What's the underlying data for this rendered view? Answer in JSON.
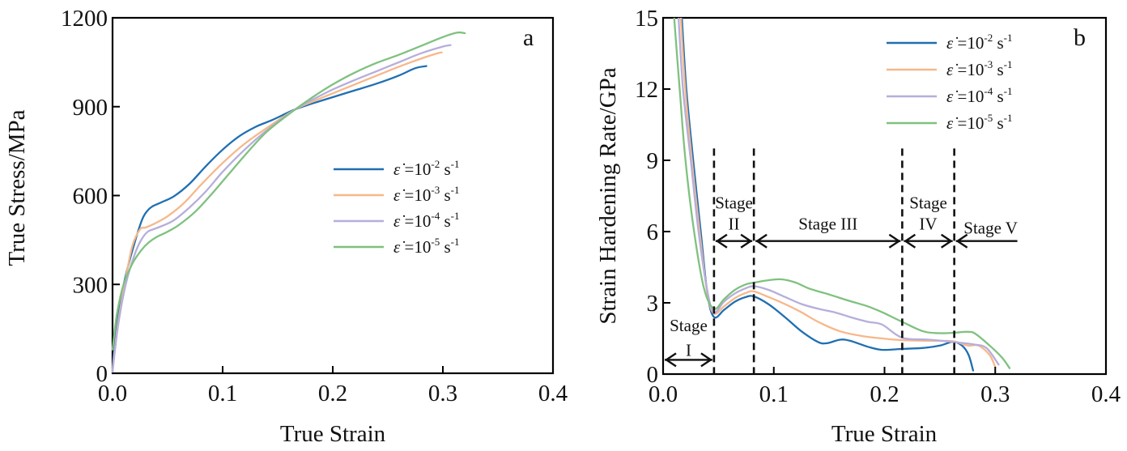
{
  "chart_data": [
    {
      "type": "line",
      "panel": "a",
      "title": "",
      "xlabel": "True Strain",
      "ylabel": "True Stress/MPa",
      "xlim": [
        0,
        0.4
      ],
      "ylim": [
        0,
        1200
      ],
      "xticks": [
        0.0,
        0.1,
        0.2,
        0.3,
        0.4
      ],
      "xtick_labels": [
        "0.0",
        "0.1",
        "0.2",
        "0.3",
        "0.4"
      ],
      "yticks": [
        0,
        300,
        600,
        900,
        1200
      ],
      "ytick_labels": [
        "0",
        "300",
        "600",
        "900",
        "1200"
      ],
      "grid": false,
      "legend_position": "center-right",
      "series": [
        {
          "name": "ε̇ =10-2 s-1",
          "rate_base": "ε̇ =10",
          "rate_exp": "-2",
          "unit": " s",
          "unit_exp": "-1",
          "color": "#1f6fb2",
          "x": [
            0.0,
            0.005,
            0.012,
            0.02,
            0.027,
            0.032,
            0.037,
            0.045,
            0.056,
            0.07,
            0.085,
            0.1,
            0.115,
            0.13,
            0.145,
            0.166,
            0.185,
            0.2,
            0.22,
            0.24,
            0.26,
            0.275,
            0.285
          ],
          "y": [
            20,
            200,
            330,
            440,
            520,
            550,
            565,
            578,
            598,
            640,
            700,
            755,
            800,
            832,
            855,
            891,
            915,
            932,
            955,
            978,
            1005,
            1030,
            1037
          ]
        },
        {
          "name": "ε̇ =10-3 s-1",
          "rate_base": "ε̇ =10",
          "rate_exp": "-3",
          "unit": " s",
          "unit_exp": "-1",
          "color": "#f6b88a",
          "x": [
            0.0,
            0.005,
            0.012,
            0.018,
            0.025,
            0.03,
            0.038,
            0.05,
            0.065,
            0.08,
            0.1,
            0.12,
            0.14,
            0.166,
            0.185,
            0.2,
            0.22,
            0.24,
            0.26,
            0.28,
            0.295,
            0.299
          ],
          "y": [
            10,
            170,
            320,
            430,
            486,
            492,
            505,
            530,
            575,
            635,
            710,
            775,
            828,
            891,
            922,
            945,
            975,
            1005,
            1035,
            1062,
            1080,
            1083
          ]
        },
        {
          "name": "ε̇ =10-4 s-1",
          "rate_base": "ε̇ =10",
          "rate_exp": "-4",
          "unit": " s",
          "unit_exp": "-1",
          "color": "#b6aedb",
          "x": [
            0.0,
            0.005,
            0.012,
            0.02,
            0.026,
            0.032,
            0.04,
            0.055,
            0.07,
            0.085,
            0.1,
            0.12,
            0.14,
            0.166,
            0.185,
            0.2,
            0.22,
            0.24,
            0.26,
            0.28,
            0.3,
            0.307
          ],
          "y": [
            5,
            160,
            300,
            400,
            450,
            478,
            490,
            515,
            560,
            615,
            680,
            755,
            820,
            891,
            930,
            958,
            990,
            1020,
            1050,
            1080,
            1103,
            1108
          ]
        },
        {
          "name": "ε̇ =10-5 s-1",
          "rate_base": "ε̇ =10",
          "rate_exp": "-5",
          "unit": " s",
          "unit_exp": "-1",
          "color": "#7fc17f",
          "x": [
            0.0,
            0.004,
            0.01,
            0.018,
            0.026,
            0.033,
            0.04,
            0.05,
            0.06,
            0.075,
            0.09,
            0.105,
            0.12,
            0.14,
            0.166,
            0.185,
            0.2,
            0.22,
            0.24,
            0.26,
            0.28,
            0.3,
            0.313,
            0.32
          ],
          "y": [
            80,
            200,
            300,
            370,
            415,
            442,
            460,
            478,
            500,
            545,
            605,
            670,
            735,
            815,
            891,
            940,
            975,
            1015,
            1048,
            1075,
            1105,
            1135,
            1150,
            1148
          ]
        }
      ]
    },
    {
      "type": "line",
      "panel": "b",
      "title": "",
      "xlabel": "True Strain",
      "ylabel": "Strain Hardening Rate/GPa",
      "xlim": [
        0,
        0.4
      ],
      "ylim": [
        0,
        15
      ],
      "xticks": [
        0.0,
        0.1,
        0.2,
        0.3,
        0.4
      ],
      "xtick_labels": [
        "0.0",
        "0.1",
        "0.2",
        "0.3",
        "0.4"
      ],
      "yticks": [
        0,
        3,
        6,
        9,
        12,
        15
      ],
      "ytick_labels": [
        "0",
        "3",
        "6",
        "9",
        "12",
        "15"
      ],
      "grid": false,
      "legend_position": "top-right",
      "series": [
        {
          "name": "ε̇ =10-2 s-1",
          "rate_base": "ε̇ =10",
          "rate_exp": "-2",
          "unit": " s",
          "unit_exp": "-1",
          "color": "#1f6fb2",
          "x": [
            0.016,
            0.017,
            0.021,
            0.027,
            0.034,
            0.04,
            0.046,
            0.055,
            0.065,
            0.075,
            0.082,
            0.095,
            0.11,
            0.125,
            0.14,
            0.148,
            0.16,
            0.169,
            0.185,
            0.198,
            0.216,
            0.235,
            0.25,
            0.262,
            0.27,
            0.276,
            0.28
          ],
          "y": [
            16,
            15,
            12,
            9.1,
            6.0,
            3.4,
            2.4,
            2.7,
            3.05,
            3.25,
            3.27,
            2.95,
            2.4,
            1.8,
            1.35,
            1.3,
            1.45,
            1.4,
            1.15,
            1.02,
            1.06,
            1.1,
            1.2,
            1.36,
            1.2,
            0.8,
            0.15
          ]
        },
        {
          "name": "ε̇ =10-3 s-1",
          "rate_base": "ε̇ =10",
          "rate_exp": "-3",
          "unit": " s",
          "unit_exp": "-1",
          "color": "#f6b88a",
          "x": [
            0.015,
            0.016,
            0.02,
            0.026,
            0.033,
            0.04,
            0.046,
            0.055,
            0.065,
            0.075,
            0.082,
            0.095,
            0.11,
            0.125,
            0.14,
            0.16,
            0.18,
            0.198,
            0.216,
            0.24,
            0.262,
            0.275,
            0.285,
            0.295,
            0.3
          ],
          "y": [
            16,
            15,
            12,
            9.0,
            6.0,
            3.4,
            2.55,
            2.85,
            3.2,
            3.42,
            3.48,
            3.25,
            2.95,
            2.6,
            2.2,
            1.8,
            1.6,
            1.5,
            1.43,
            1.4,
            1.38,
            1.2,
            1.2,
            0.8,
            0.3
          ]
        },
        {
          "name": "ε̇ =10-4 s-1",
          "rate_base": "ε̇ =10",
          "rate_exp": "-4",
          "unit": " s",
          "unit_exp": "-1",
          "color": "#b6aedb",
          "x": [
            0.013,
            0.014,
            0.018,
            0.025,
            0.032,
            0.04,
            0.046,
            0.055,
            0.065,
            0.075,
            0.082,
            0.095,
            0.11,
            0.125,
            0.14,
            0.155,
            0.169,
            0.185,
            0.198,
            0.216,
            0.24,
            0.262,
            0.28,
            0.292,
            0.303
          ],
          "y": [
            16,
            15,
            12,
            9.0,
            6.0,
            3.5,
            2.6,
            3.05,
            3.4,
            3.62,
            3.7,
            3.55,
            3.25,
            2.95,
            2.75,
            2.6,
            2.4,
            2.2,
            2.08,
            1.53,
            1.45,
            1.35,
            1.25,
            1.1,
            0.4
          ]
        },
        {
          "name": "ε̇ =10-5 s-1",
          "rate_base": "ε̇ =10",
          "rate_exp": "-5",
          "unit": " s",
          "unit_exp": "-1",
          "color": "#7fc17f",
          "x": [
            0.009,
            0.01,
            0.015,
            0.02,
            0.028,
            0.037,
            0.046,
            0.055,
            0.065,
            0.075,
            0.082,
            0.095,
            0.107,
            0.12,
            0.132,
            0.15,
            0.169,
            0.185,
            0.198,
            0.216,
            0.235,
            0.25,
            0.262,
            0.275,
            0.282,
            0.295,
            0.306,
            0.313
          ],
          "y": [
            16,
            15,
            12,
            9.1,
            6.0,
            3.6,
            2.75,
            3.15,
            3.55,
            3.78,
            3.85,
            3.95,
            3.99,
            3.85,
            3.6,
            3.35,
            3.07,
            2.85,
            2.6,
            2.2,
            1.8,
            1.72,
            1.74,
            1.78,
            1.7,
            1.2,
            0.7,
            0.25
          ]
        }
      ],
      "stage_boundaries": [
        0.046,
        0.082,
        0.216,
        0.263
      ],
      "stages": [
        {
          "line1": "Stage",
          "line2": "I",
          "from": 0.0,
          "to": 0.046
        },
        {
          "line1": "Stage",
          "line2": "II",
          "from": 0.046,
          "to": 0.082
        },
        {
          "line1": "Stage III",
          "line2": "",
          "from": 0.082,
          "to": 0.216
        },
        {
          "line1": "Stage",
          "line2": "IV",
          "from": 0.216,
          "to": 0.263
        },
        {
          "line1": "Stage V",
          "line2": "",
          "from": 0.263,
          "to": 0.32
        }
      ]
    }
  ]
}
